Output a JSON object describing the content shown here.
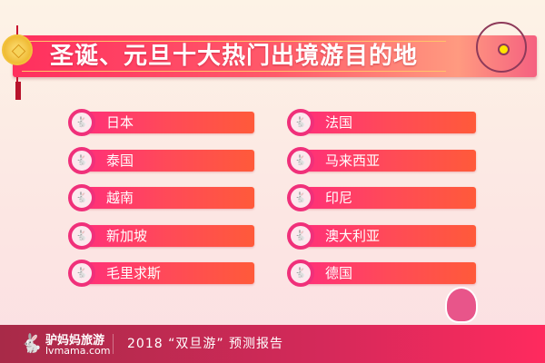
{
  "header": {
    "title": "圣诞、元旦十大热门出境游目的地"
  },
  "destinations": {
    "left": [
      "日本",
      "泰国",
      "越南",
      "新加坡",
      "毛里求斯"
    ],
    "right": [
      "法国",
      "马来西亚",
      "印尼",
      "澳大利亚",
      "德国"
    ]
  },
  "footer": {
    "brand_cn": "驴妈妈旅游",
    "brand_en": "lvmama.com",
    "report": "2018 “双旦游” 预测报告"
  },
  "colors": {
    "accent": "#ff2f5e",
    "footer": "#d5295a"
  }
}
